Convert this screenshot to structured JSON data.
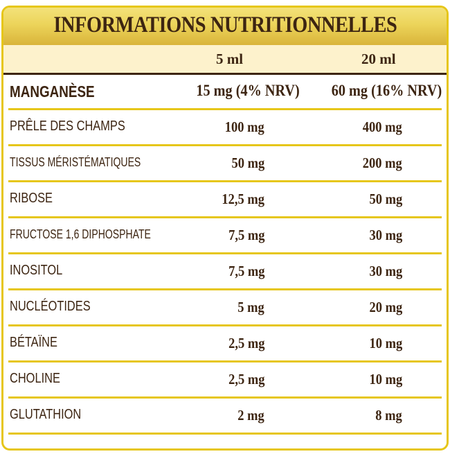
{
  "title": "INFORMATIONS NUTRITIONNELLES",
  "columns": [
    "5 ml",
    "20 ml"
  ],
  "rows": [
    {
      "name": "MANGANÈSE",
      "v1": "15 mg (4% NRV)",
      "v2": "60 mg (16% NRV)"
    },
    {
      "name": "PRÊLE DES CHAMPS",
      "v1": "100 mg",
      "v2": "400 mg"
    },
    {
      "name": "TISSUS MÉRISTÉMATIQUES",
      "v1": "50 mg",
      "v2": "200 mg"
    },
    {
      "name": "RIBOSE",
      "v1": "12,5 mg",
      "v2": "50 mg"
    },
    {
      "name": "FRUCTOSE 1,6 DIPHOSPHATE",
      "v1": "7,5 mg",
      "v2": "30 mg"
    },
    {
      "name": "INOSITOL",
      "v1": "7,5 mg",
      "v2": "30 mg"
    },
    {
      "name": "NUCLÉOTIDES",
      "v1": "5 mg",
      "v2": "20 mg"
    },
    {
      "name": "BÉTAÏNE",
      "v1": "2,5 mg",
      "v2": "10 mg"
    },
    {
      "name": "CHOLINE",
      "v1": "2,5 mg",
      "v2": "10 mg"
    },
    {
      "name": "GLUTATHION",
      "v1": "2 mg",
      "v2": "8 mg"
    }
  ],
  "colors": {
    "border": "#e6c619",
    "text": "#3d2512",
    "header_bg": "#fdf2cc",
    "title_bg": "#ecd45a"
  }
}
